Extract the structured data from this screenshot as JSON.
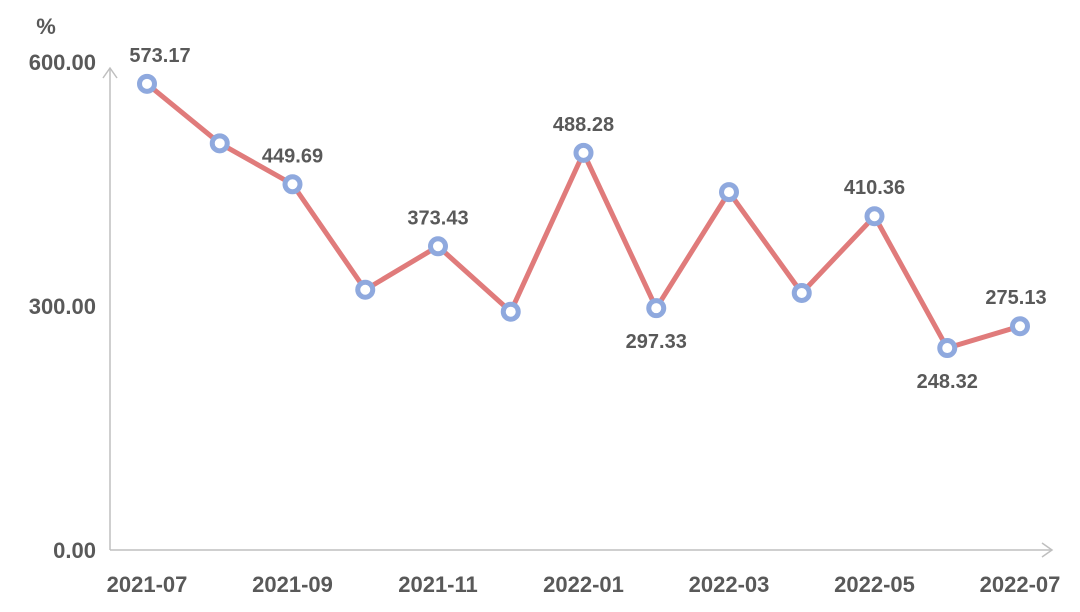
{
  "chart_data": {
    "type": "line",
    "ylabel": "%",
    "ylim": [
      0,
      600
    ],
    "y_ticks": [
      "0.00",
      "300.00",
      "600.00"
    ],
    "x_tick_labels": [
      "2021-07",
      "2021-09",
      "2021-11",
      "2022-01",
      "2022-03",
      "2022-05",
      "2022-07"
    ],
    "categories": [
      "2021-07",
      "2021-08",
      "2021-09",
      "2021-10",
      "2021-11",
      "2021-12",
      "2022-01",
      "2022-02",
      "2022-03",
      "2022-04",
      "2022-05",
      "2022-06",
      "2022-07"
    ],
    "series": [
      {
        "values": [
          573.17,
          500,
          449.69,
          320,
          373.43,
          293,
          488.28,
          297.33,
          440,
          316,
          410.36,
          248.32,
          275.13
        ],
        "labels": [
          "573.17",
          "",
          "449.69",
          "",
          "373.43",
          "",
          "488.28",
          "297.33",
          "",
          "",
          "410.36",
          "248.32",
          "275.13"
        ]
      }
    ],
    "colors": {
      "line": "#e07b7b",
      "marker": "#8fa9de",
      "axis": "#bfbfbf",
      "text": "#595959"
    },
    "grid": false,
    "legend": "none"
  }
}
